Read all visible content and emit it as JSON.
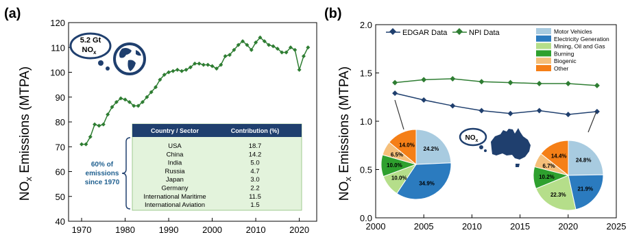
{
  "chart_data": [
    {
      "panel_label": "(a)",
      "type": "line",
      "ylabel": "NOx Emissions (MTPA)",
      "xlim": [
        1967,
        2024
      ],
      "ylim": [
        40,
        120
      ],
      "xticks": [
        1970,
        1980,
        1990,
        2000,
        2010,
        2020
      ],
      "yticks": [
        40,
        50,
        60,
        70,
        80,
        90,
        100,
        110,
        120
      ],
      "color": "#2e7d32",
      "series": [
        {
          "x": [
            1970,
            1971,
            1972,
            1973,
            1974,
            1975,
            1976,
            1977,
            1978,
            1979,
            1980,
            1981,
            1982,
            1983,
            1984,
            1985,
            1986,
            1987,
            1988,
            1989,
            1990,
            1991,
            1992,
            1993,
            1994,
            1995,
            1996,
            1997,
            1998,
            1999,
            2000,
            2001,
            2002,
            2003,
            2004,
            2005,
            2006,
            2007,
            2008,
            2009,
            2010,
            2011,
            2012,
            2013,
            2014,
            2015,
            2016,
            2017,
            2018,
            2019,
            2020,
            2021,
            2022
          ],
          "values": [
            71,
            71,
            74,
            79,
            78.5,
            79,
            83,
            86,
            88,
            89.5,
            89,
            88,
            86.5,
            86.5,
            88,
            90,
            92,
            94,
            97,
            99,
            100,
            100.5,
            101,
            100.5,
            101,
            102,
            103.5,
            103.5,
            103,
            103,
            102.5,
            101.5,
            103,
            106.5,
            107,
            109,
            111,
            112.5,
            111,
            109,
            112,
            114,
            112.5,
            111,
            110.5,
            109.5,
            108,
            108,
            110,
            109,
            101,
            106.5,
            110
          ]
        }
      ],
      "callout": {
        "line1": "5.2 Gt",
        "line2": "NO",
        "sub": "x"
      },
      "table": {
        "headers": [
          "Country / Sector",
          "Contribution (%)"
        ],
        "rows": [
          [
            "USA",
            "18.7"
          ],
          [
            "China",
            "14.2"
          ],
          [
            "India",
            "5.0"
          ],
          [
            "Russia",
            "4.7"
          ],
          [
            "Japan",
            "3.0"
          ],
          [
            "Germany",
            "2.2"
          ],
          [
            "International Maritime",
            "11.5"
          ],
          [
            "International Aviation",
            "1.5"
          ]
        ]
      },
      "annotation": [
        "60% of",
        "emissions",
        "since 1970"
      ]
    },
    {
      "panel_label": "(b)",
      "type": "line",
      "ylabel": "NOx Emissions (MTPA)",
      "xlim": [
        2000,
        2025
      ],
      "ylim": [
        0.0,
        2.0
      ],
      "xticks": [
        2000,
        2005,
        2010,
        2015,
        2020,
        2025
      ],
      "yticks": [
        0.0,
        0.5,
        1.0,
        1.5,
        2.0
      ],
      "series": [
        {
          "name": "EDGAR Data",
          "color": "#1f3f6e",
          "x": [
            2002,
            2005,
            2008,
            2011,
            2014,
            2017,
            2020,
            2023
          ],
          "values": [
            1.29,
            1.22,
            1.16,
            1.11,
            1.08,
            1.11,
            1.07,
            1.1
          ]
        },
        {
          "name": "NPI Data",
          "color": "#2e7d32",
          "x": [
            2002,
            2005,
            2008,
            2011,
            2014,
            2017,
            2020,
            2023
          ],
          "values": [
            1.4,
            1.43,
            1.44,
            1.41,
            1.4,
            1.39,
            1.39,
            1.37
          ]
        }
      ],
      "pie_legend": [
        {
          "label": "Motor Vehicles",
          "color": "#a8cbe0"
        },
        {
          "label": "Electricity Generation",
          "color": "#2b7bbf"
        },
        {
          "label": "Mining, Oil and Gas",
          "color": "#b5de8a"
        },
        {
          "label": "Burning",
          "color": "#2ea02e"
        },
        {
          "label": "Biogenic",
          "color": "#f5bf7a"
        },
        {
          "label": "Other",
          "color": "#f57f17"
        }
      ],
      "pies": [
        {
          "year": 2002,
          "values": [
            24.2,
            34.9,
            10.0,
            10.0,
            6.5,
            14.0
          ],
          "labels": [
            "24.2%",
            "34.9%",
            "10.0%",
            "10.0%",
            "6.5%",
            "14.0%"
          ]
        },
        {
          "year": 2023,
          "values": [
            24.8,
            21.9,
            22.3,
            10.2,
            6.7,
            14.4
          ],
          "labels": [
            "24.8%",
            "21.9%",
            "22.3%",
            "10.2%",
            "6.7%",
            "14.4%"
          ]
        }
      ],
      "callout": {
        "line1": "NO",
        "sub": "x"
      }
    }
  ]
}
